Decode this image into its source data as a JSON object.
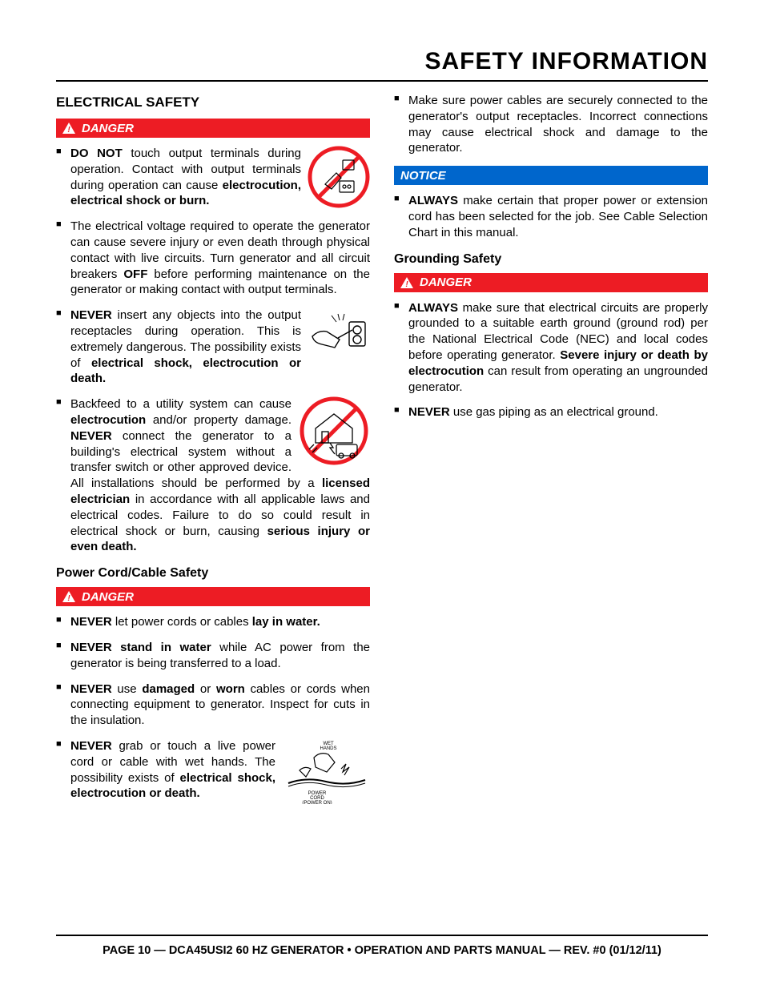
{
  "page_title": "SAFETY INFORMATION",
  "colors": {
    "danger_bg": "#ed1c24",
    "notice_bg": "#0066cc",
    "text": "#000000",
    "background": "#ffffff"
  },
  "left_column": {
    "heading": "ELECTRICAL SAFETY",
    "danger_label": "DANGER",
    "bullets1": [
      "<b>DO NOT</b> touch output terminals during operation. Contact with output terminals during operation can cause <b>electrocution, electrical shock or burn.</b>",
      "The electrical voltage required to operate the generator can cause severe injury or even death through physical contact with live circuits. Turn generator and all circuit breakers <b>OFF</b> before performing maintenance on the generator or making contact with output terminals.",
      "<b>NEVER</b> insert any objects into the output receptacles during operation. This is extremely dangerous. The possibility exists of <b>electrical shock, electrocution or death.</b>",
      "Backfeed to a utility system can cause <b>electrocution</b> and/or property damage. <b>NEVER</b> connect the generator to a building's electrical system without a transfer switch or other approved device. All installations should be performed by a <b>licensed electrician</b> in accordance with all applicable laws and electrical codes. Failure to do so could result in electrical shock or burn, causing <b>serious injury or even death.</b>"
    ],
    "subheading": "Power Cord/Cable Safety",
    "danger_label2": "DANGER",
    "bullets2": [
      "<b>NEVER</b> let power cords or cables <b>lay in water.</b>",
      "<b>NEVER stand in water</b> while AC power from the generator is being transferred to a load.",
      "<b>NEVER</b> use <b>damaged</b> or <b>worn</b> cables or cords when connecting equipment to generator. Inspect for cuts in the insulation.",
      "<b>NEVER</b> grab or touch a live power cord or cable with wet hands. The possibility exists of <b>electrical shock, electrocution or death.</b>"
    ]
  },
  "right_column": {
    "top_bullet": "Make sure power cables are securely connected to the generator's output receptacles. Incorrect connections may cause electrical shock and damage to the generator.",
    "notice_label": "NOTICE",
    "notice_bullet": "<b>ALWAYS</b> make certain that proper power or extension cord has been selected for the job. See Cable Selection Chart in this manual.",
    "subheading": "Grounding Safety",
    "danger_label": "DANGER",
    "bullets": [
      "<b>ALWAYS</b> make sure that electrical circuits are properly grounded to a suitable earth ground (ground rod) per the National Electrical Code (NEC) and local codes before operating generator. <b>Severe injury or death by electrocution</b> can result from operating an ungrounded generator.",
      "<b>NEVER</b> use gas piping as an electrical ground."
    ]
  },
  "footer": "PAGE 10 — DCA45USI2 60 HZ GENERATOR • OPERATION AND PARTS MANUAL — REV. #0 (01/12/11)",
  "icons": {
    "no_touch_label": "no-touch-terminals-icon",
    "insert_label": "insert-object-receptacle-icon",
    "backfeed_label": "no-backfeed-house-icon",
    "wet_hands_label": "wet-hands-power-cord-icon",
    "wet_hands_text_top": "WET\nHANDS",
    "wet_hands_text_bottom": "POWER\nCORD\n(POWER ON)"
  }
}
